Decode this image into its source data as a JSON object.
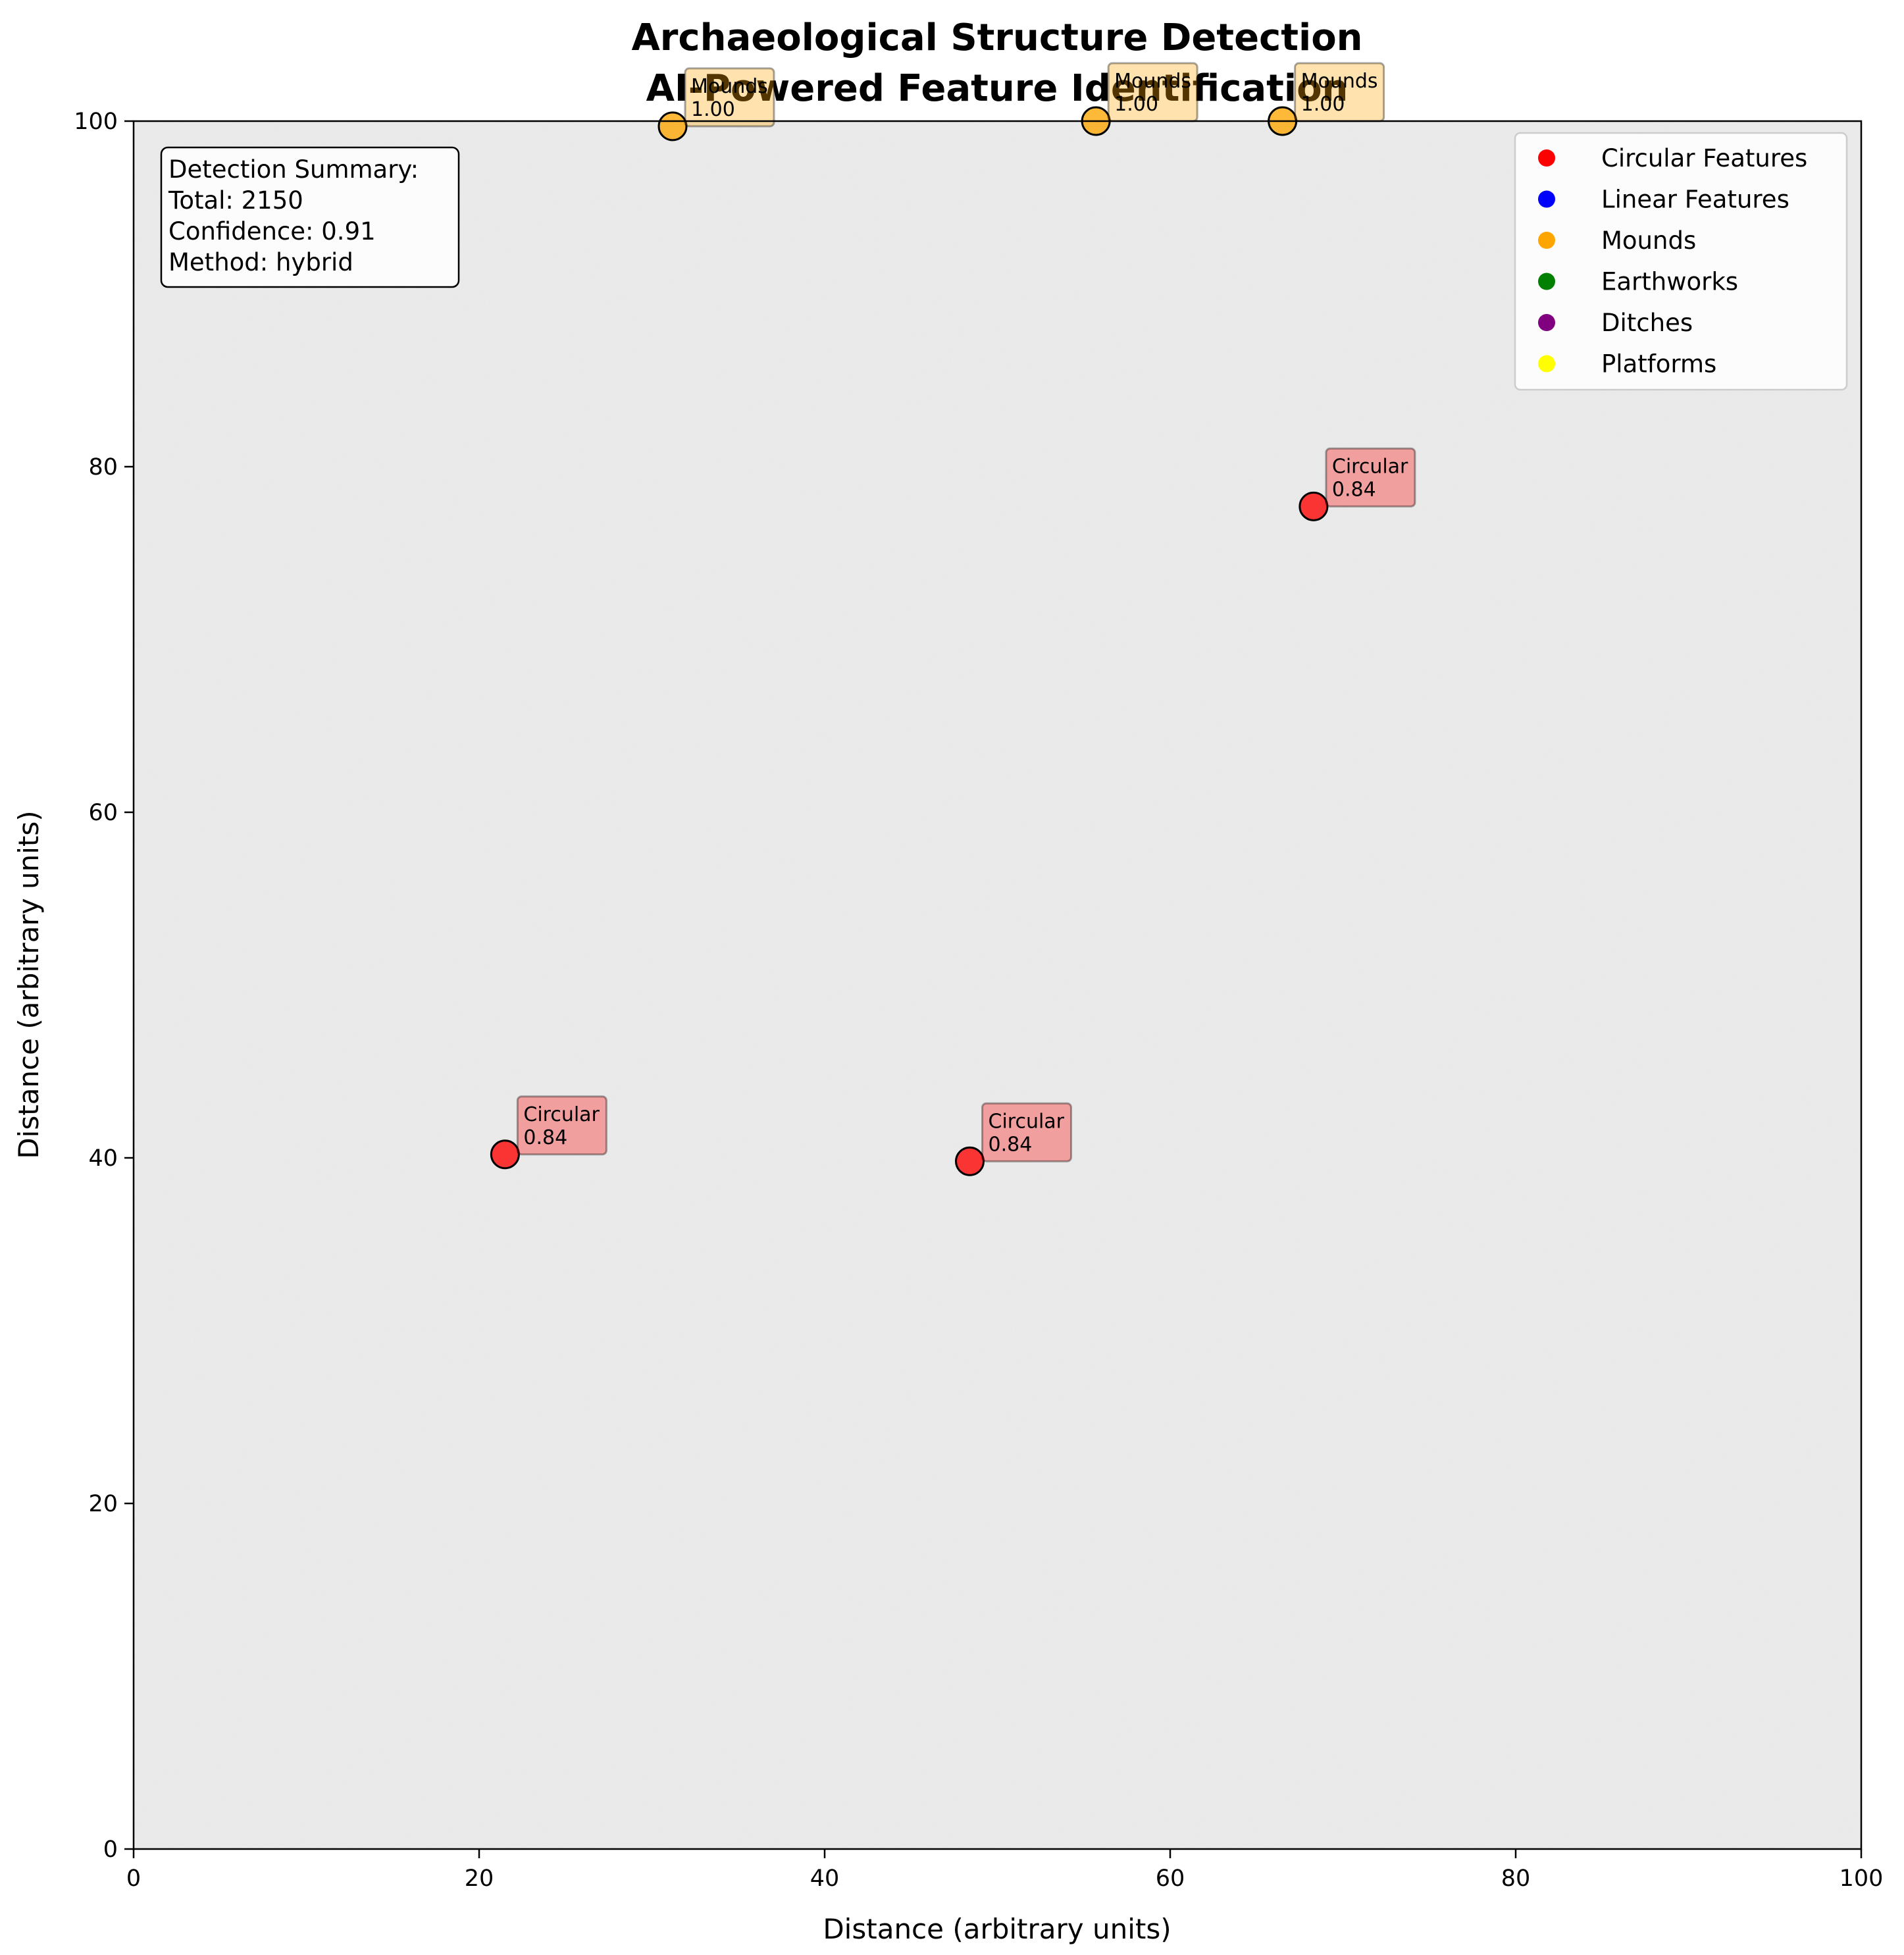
{
  "title_line1": "Archaeological Structure Detection",
  "title_line2": "AI-Powered Feature Identification",
  "summary": {
    "heading": "Detection Summary:",
    "total": "Total: 2150",
    "confidence": "Confidence: 0.91",
    "method": "Method: hybrid"
  },
  "chart_data": {
    "type": "scatter",
    "xlabel": "Distance (arbitrary units)",
    "ylabel": "Distance (arbitrary units)",
    "xlim": [
      0,
      100
    ],
    "ylim": [
      0,
      100
    ],
    "x_ticks": [
      0,
      20,
      40,
      60,
      80,
      100
    ],
    "y_ticks": [
      0,
      20,
      40,
      60,
      80,
      100
    ],
    "grid": false,
    "legend_position": "top-right",
    "background": "grayscale noise texture",
    "legend": [
      {
        "label": "Circular Features",
        "color": "#ff0000"
      },
      {
        "label": "Linear Features",
        "color": "#0000ff"
      },
      {
        "label": "Mounds",
        "color": "#ffa500"
      },
      {
        "label": "Earthworks",
        "color": "#008000"
      },
      {
        "label": "Ditches",
        "color": "#800080"
      },
      {
        "label": "Platforms",
        "color": "#ffff00"
      }
    ],
    "points": [
      {
        "x": 21.5,
        "y": 40.2,
        "type": "Circular",
        "confidence": "0.84",
        "color": "#ff0000"
      },
      {
        "x": 48.4,
        "y": 39.8,
        "type": "Circular",
        "confidence": "0.84",
        "color": "#ff0000"
      },
      {
        "x": 68.3,
        "y": 77.7,
        "type": "Circular",
        "confidence": "0.84",
        "color": "#ff0000"
      },
      {
        "x": 31.2,
        "y": 99.7,
        "type": "Mounds",
        "confidence": "1.00",
        "color": "#ffa500"
      },
      {
        "x": 55.7,
        "y": 100.0,
        "type": "Mounds",
        "confidence": "1.00",
        "color": "#ffa500"
      },
      {
        "x": 66.5,
        "y": 100.0,
        "type": "Mounds",
        "confidence": "1.00",
        "color": "#ffa500"
      }
    ]
  }
}
